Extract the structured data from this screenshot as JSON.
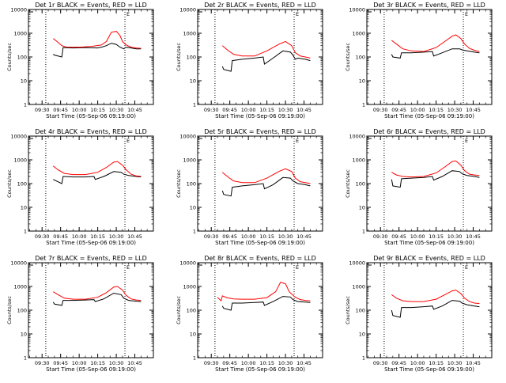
{
  "colors": {
    "events": "#000000",
    "lld": "#ff0000",
    "axes": "#000000"
  },
  "chart_data": [
    {
      "type": "line",
      "title": "Det 1r BLACK = Events, RED = LLD",
      "xlabel": "Start Time (05-Sep-06 09:19:00)",
      "ylabel": "Counts/sec",
      "y_scale": "log",
      "ylim": [
        1,
        10000
      ],
      "y_ticks": [
        "1",
        "10",
        "100",
        "1000",
        "10000"
      ],
      "xlim": [
        "09:19",
        "11:00"
      ],
      "x_ticks": [
        "09:30",
        "09:45",
        "10:00",
        "10:15",
        "10:30",
        "10:45"
      ],
      "vlines": [
        "09:33",
        "10:37"
      ],
      "annotation": "E",
      "series": [
        {
          "name": "Events",
          "x": [
            "09:39",
            "09:40",
            "09:46",
            "09:47",
            "09:55",
            "10:05",
            "10:15",
            "10:18",
            "10:22",
            "10:26",
            "10:30",
            "10:33",
            "10:36",
            "10:38",
            "10:42",
            "10:46",
            "10:50"
          ],
          "values": [
            130,
            120,
            100,
            250,
            240,
            250,
            240,
            260,
            300,
            380,
            340,
            260,
            220,
            260,
            240,
            220,
            220
          ]
        },
        {
          "name": "LLD",
          "x": [
            "09:39",
            "09:42",
            "09:46",
            "09:50",
            "10:00",
            "10:10",
            "10:18",
            "10:22",
            "10:26",
            "10:30",
            "10:33",
            "10:35",
            "10:38",
            "10:42",
            "10:46",
            "10:50"
          ],
          "values": [
            600,
            450,
            300,
            260,
            260,
            280,
            320,
            450,
            1100,
            1200,
            800,
            450,
            320,
            260,
            240,
            230
          ]
        }
      ]
    },
    {
      "type": "line",
      "title": "Det 2r BLACK = Events, RED = LLD",
      "xlabel": "Start Time (05-Sep-06 09:19:00)",
      "ylabel": "Counts/sec",
      "y_scale": "log",
      "ylim": [
        1,
        10000
      ],
      "y_ticks": [
        "1",
        "10",
        "100",
        "1000",
        "10000"
      ],
      "xlim": [
        "09:19",
        "11:00"
      ],
      "x_ticks": [
        "09:30",
        "09:45",
        "10:00",
        "10:15",
        "10:30",
        "10:45"
      ],
      "vlines": [
        "09:33",
        "10:37"
      ],
      "annotation": "E",
      "series": [
        {
          "name": "Events",
          "x": [
            "09:39",
            "09:40",
            "09:46",
            "09:47",
            "09:55",
            "10:05",
            "10:12",
            "10:13",
            "10:20",
            "10:28",
            "10:34",
            "10:36",
            "10:38",
            "10:40",
            "10:46",
            "10:50"
          ],
          "values": [
            40,
            30,
            25,
            70,
            80,
            90,
            100,
            50,
            90,
            180,
            160,
            120,
            80,
            90,
            80,
            70
          ]
        },
        {
          "name": "LLD",
          "x": [
            "09:39",
            "09:43",
            "09:48",
            "09:55",
            "10:05",
            "10:15",
            "10:25",
            "10:30",
            "10:35",
            "10:38",
            "10:42",
            "10:46",
            "10:50"
          ],
          "values": [
            300,
            200,
            130,
            110,
            110,
            180,
            350,
            450,
            300,
            150,
            110,
            100,
            90
          ]
        }
      ]
    },
    {
      "type": "line",
      "title": "Det 3r BLACK = Events, RED = LLD",
      "xlabel": "Start Time (05-Sep-06 09:19:00)",
      "ylabel": "Counts/sec",
      "y_scale": "log",
      "ylim": [
        1,
        10000
      ],
      "y_ticks": [
        "1",
        "10",
        "100",
        "1000",
        "10000"
      ],
      "xlim": [
        "09:19",
        "11:00"
      ],
      "x_ticks": [
        "09:30",
        "09:45",
        "10:00",
        "10:15",
        "10:30",
        "10:45"
      ],
      "vlines": [
        "09:33",
        "10:37"
      ],
      "annotation": "E",
      "series": [
        {
          "name": "Events",
          "x": [
            "09:39",
            "09:40",
            "09:46",
            "09:47",
            "09:55",
            "10:05",
            "10:12",
            "10:13",
            "10:20",
            "10:28",
            "10:34",
            "10:36",
            "10:40",
            "10:46",
            "10:50"
          ],
          "values": [
            130,
            100,
            90,
            150,
            150,
            160,
            170,
            110,
            150,
            220,
            220,
            200,
            180,
            160,
            150
          ]
        },
        {
          "name": "LLD",
          "x": [
            "09:39",
            "09:43",
            "09:48",
            "09:55",
            "10:05",
            "10:15",
            "10:22",
            "10:28",
            "10:31",
            "10:35",
            "10:38",
            "10:42",
            "10:46",
            "10:50"
          ],
          "values": [
            500,
            350,
            220,
            180,
            170,
            250,
            450,
            750,
            850,
            600,
            350,
            230,
            190,
            170
          ]
        }
      ]
    },
    {
      "type": "line",
      "title": "Det 4r BLACK = Events, RED = LLD",
      "xlabel": "Start Time (05-Sep-06 09:19:00)",
      "ylabel": "Counts/sec",
      "y_scale": "log",
      "ylim": [
        1,
        10000
      ],
      "y_ticks": [
        "1",
        "10",
        "100",
        "1000",
        "10000"
      ],
      "xlim": [
        "09:19",
        "11:00"
      ],
      "x_ticks": [
        "09:30",
        "09:45",
        "10:00",
        "10:15",
        "10:30",
        "10:45"
      ],
      "vlines": [
        "09:33",
        "10:37"
      ],
      "annotation": "E",
      "series": [
        {
          "name": "Events",
          "x": [
            "09:39",
            "09:40",
            "09:46",
            "09:47",
            "09:55",
            "10:05",
            "10:12",
            "10:13",
            "10:20",
            "10:28",
            "10:34",
            "10:36",
            "10:40",
            "10:46",
            "10:50"
          ],
          "values": [
            150,
            140,
            100,
            200,
            190,
            190,
            200,
            150,
            200,
            320,
            300,
            250,
            220,
            200,
            190
          ]
        },
        {
          "name": "LLD",
          "x": [
            "09:39",
            "09:43",
            "09:48",
            "09:55",
            "10:05",
            "10:15",
            "10:22",
            "10:28",
            "10:31",
            "10:35",
            "10:38",
            "10:42",
            "10:46",
            "10:50"
          ],
          "values": [
            550,
            380,
            270,
            240,
            240,
            300,
            480,
            800,
            850,
            600,
            380,
            250,
            210,
            200
          ]
        }
      ]
    },
    {
      "type": "line",
      "title": "Det 5r BLACK = Events, RED = LLD",
      "xlabel": "Start Time (05-Sep-06 09:19:00)",
      "ylabel": "Counts/sec",
      "y_scale": "log",
      "ylim": [
        1,
        10000
      ],
      "y_ticks": [
        "1",
        "10",
        "100",
        "1000",
        "10000"
      ],
      "xlim": [
        "09:19",
        "11:00"
      ],
      "x_ticks": [
        "09:30",
        "09:45",
        "10:00",
        "10:15",
        "10:30",
        "10:45"
      ],
      "vlines": [
        "09:33",
        "10:37"
      ],
      "annotation": "E",
      "series": [
        {
          "name": "Events",
          "x": [
            "09:39",
            "09:40",
            "09:46",
            "09:47",
            "09:55",
            "10:05",
            "10:12",
            "10:13",
            "10:20",
            "10:28",
            "10:34",
            "10:36",
            "10:40",
            "10:46",
            "10:50"
          ],
          "values": [
            50,
            35,
            30,
            70,
            80,
            90,
            100,
            60,
            90,
            180,
            170,
            130,
            100,
            90,
            80
          ]
        },
        {
          "name": "LLD",
          "x": [
            "09:39",
            "09:43",
            "09:48",
            "09:55",
            "10:05",
            "10:15",
            "10:25",
            "10:30",
            "10:35",
            "10:38",
            "10:42",
            "10:46",
            "10:50"
          ],
          "values": [
            300,
            200,
            130,
            110,
            110,
            170,
            330,
            420,
            320,
            170,
            120,
            110,
            100
          ]
        }
      ]
    },
    {
      "type": "line",
      "title": "Det 6r BLACK = Events, RED = LLD",
      "xlabel": "Start Time (05-Sep-06 09:19:00)",
      "ylabel": "Counts/sec",
      "y_scale": "log",
      "ylim": [
        1,
        10000
      ],
      "y_ticks": [
        "1",
        "10",
        "100",
        "1000",
        "10000"
      ],
      "xlim": [
        "09:19",
        "11:00"
      ],
      "x_ticks": [
        "09:30",
        "09:45",
        "10:00",
        "10:15",
        "10:30",
        "10:45"
      ],
      "vlines": [
        "09:33",
        "10:37"
      ],
      "annotation": "E",
      "series": [
        {
          "name": "Events",
          "x": [
            "09:39",
            "09:40",
            "09:46",
            "09:47",
            "09:55",
            "10:05",
            "10:12",
            "10:13",
            "10:20",
            "10:28",
            "10:34",
            "10:36",
            "10:40",
            "10:46",
            "10:50"
          ],
          "values": [
            150,
            80,
            70,
            160,
            170,
            180,
            200,
            140,
            200,
            350,
            320,
            260,
            220,
            200,
            180
          ]
        },
        {
          "name": "LLD",
          "x": [
            "09:39",
            "09:43",
            "09:48",
            "09:55",
            "10:05",
            "10:15",
            "10:22",
            "10:28",
            "10:31",
            "10:35",
            "10:38",
            "10:42",
            "10:46",
            "10:50"
          ],
          "values": [
            300,
            230,
            200,
            190,
            200,
            280,
            500,
            850,
            900,
            600,
            350,
            250,
            230,
            220
          ]
        }
      ]
    },
    {
      "type": "line",
      "title": "Det 7r BLACK = Events, RED = LLD",
      "xlabel": "Start Time (05-Sep-06 09:19:00)",
      "ylabel": "Counts/sec",
      "y_scale": "log",
      "ylim": [
        1,
        10000
      ],
      "y_ticks": [
        "1",
        "10",
        "100",
        "1000",
        "10000"
      ],
      "xlim": [
        "09:19",
        "11:00"
      ],
      "x_ticks": [
        "09:30",
        "09:45",
        "10:00",
        "10:15",
        "10:30",
        "10:45"
      ],
      "vlines": [
        "09:33",
        "10:37"
      ],
      "annotation": "E",
      "series": [
        {
          "name": "Events",
          "x": [
            "09:39",
            "09:40",
            "09:46",
            "09:47",
            "09:55",
            "10:05",
            "10:12",
            "10:13",
            "10:20",
            "10:28",
            "10:34",
            "10:36",
            "10:40",
            "10:46",
            "10:50"
          ],
          "values": [
            220,
            180,
            160,
            260,
            260,
            270,
            280,
            230,
            300,
            520,
            450,
            320,
            260,
            240,
            230
          ]
        },
        {
          "name": "LLD",
          "x": [
            "09:39",
            "09:43",
            "09:48",
            "09:55",
            "10:05",
            "10:15",
            "10:22",
            "10:28",
            "10:31",
            "10:35",
            "10:38",
            "10:42",
            "10:46",
            "10:50"
          ],
          "values": [
            600,
            450,
            320,
            290,
            290,
            350,
            550,
            950,
            1000,
            700,
            420,
            300,
            270,
            260
          ]
        }
      ]
    },
    {
      "type": "line",
      "title": "Det 8r BLACK = Events, RED = LLD",
      "xlabel": "Start Time (05-Sep-06 09:19:00)",
      "ylabel": "Counts/sec",
      "y_scale": "log",
      "ylim": [
        1,
        10000
      ],
      "y_ticks": [
        "1",
        "10",
        "100",
        "1000",
        "10000"
      ],
      "xlim": [
        "09:19",
        "11:00"
      ],
      "x_ticks": [
        "09:30",
        "09:45",
        "10:00",
        "10:15",
        "10:30",
        "10:45"
      ],
      "vlines": [
        "09:33",
        "10:37"
      ],
      "annotation": "E",
      "series": [
        {
          "name": "Events",
          "x": [
            "09:39",
            "09:40",
            "09:46",
            "09:47",
            "09:55",
            "10:05",
            "10:12",
            "10:13",
            "10:20",
            "10:28",
            "10:34",
            "10:36",
            "10:40",
            "10:46",
            "10:50"
          ],
          "values": [
            150,
            120,
            100,
            200,
            200,
            210,
            220,
            160,
            230,
            380,
            360,
            280,
            230,
            220,
            210
          ]
        },
        {
          "name": "LLD",
          "x": [
            "09:35",
            "09:38",
            "09:39",
            "09:43",
            "09:48",
            "09:55",
            "10:05",
            "10:15",
            "10:22",
            "10:26",
            "10:30",
            "10:33",
            "10:38",
            "10:42",
            "10:46",
            "10:50"
          ],
          "values": [
            350,
            250,
            400,
            330,
            300,
            290,
            290,
            340,
            600,
            1500,
            1300,
            600,
            350,
            280,
            260,
            250
          ]
        }
      ]
    },
    {
      "type": "line",
      "title": "Det 9r BLACK = Events, RED = LLD",
      "xlabel": "Start Time (05-Sep-06 09:19:00)",
      "ylabel": "Counts/sec",
      "y_scale": "log",
      "ylim": [
        1,
        10000
      ],
      "y_ticks": [
        "1",
        "10",
        "100",
        "1000",
        "10000"
      ],
      "xlim": [
        "09:19",
        "11:00"
      ],
      "x_ticks": [
        "09:30",
        "09:45",
        "10:00",
        "10:15",
        "10:30",
        "10:45"
      ],
      "vlines": [
        "09:33",
        "10:37"
      ],
      "annotation": "E",
      "series": [
        {
          "name": "Events",
          "x": [
            "09:39",
            "09:40",
            "09:46",
            "09:47",
            "09:55",
            "10:05",
            "10:12",
            "10:13",
            "10:20",
            "10:28",
            "10:34",
            "10:36",
            "10:40",
            "10:46",
            "10:50"
          ],
          "values": [
            100,
            60,
            50,
            130,
            130,
            140,
            150,
            110,
            150,
            260,
            240,
            200,
            170,
            150,
            140
          ]
        },
        {
          "name": "LLD",
          "x": [
            "09:39",
            "09:43",
            "09:48",
            "09:55",
            "10:05",
            "10:15",
            "10:22",
            "10:28",
            "10:31",
            "10:35",
            "10:38",
            "10:42",
            "10:46",
            "10:50"
          ],
          "values": [
            450,
            320,
            250,
            230,
            230,
            290,
            450,
            650,
            700,
            500,
            320,
            230,
            200,
            190
          ]
        }
      ]
    }
  ]
}
